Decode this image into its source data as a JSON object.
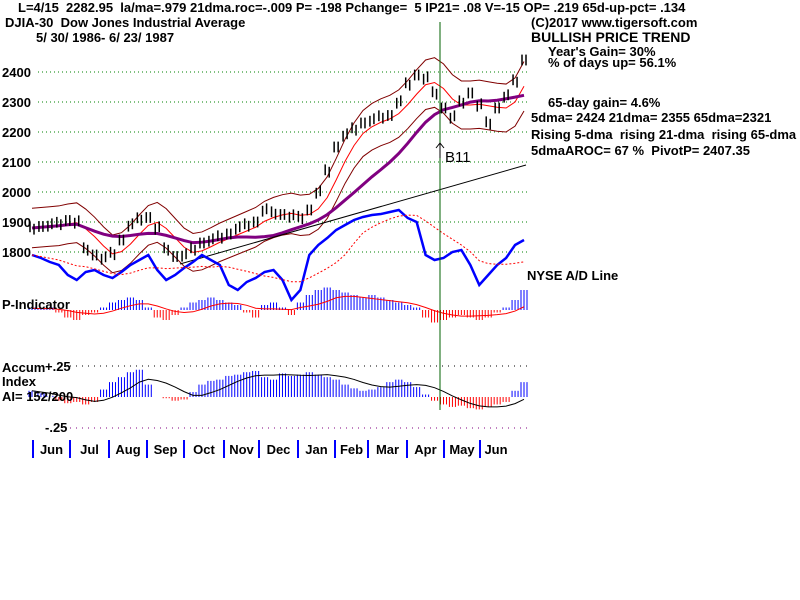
{
  "header": {
    "line1": "L=4/15  2282.95  la/ma=.979 21dma.roc=-.009 P= -198 Pchange=  5 IP21= .08 V=-15 OP= .219 65d-up-pct= .134",
    "title": "DJIA-30  Dow Jones Industrial Average",
    "range": "5/ 30/ 1986- 6/ 23/ 1987"
  },
  "info": {
    "copyright": "(C)2017 www.tigersoft.com",
    "trend": "BULLISH PRICE TREND",
    "year_gain": "Year's Gain= 30%",
    "days_up": "% of days up= 56.1%",
    "gain65": "65-day gain= 4.6%",
    "mas": "5dma= 2424 21dma= 2355 65dma=2321",
    "rising": "Rising 5-dma  rising 21-dma  rising 65-dma",
    "aroc": "5dmaAROC= 67 %  PivotP= 2407.35"
  },
  "labels": {
    "signal": "B11",
    "ad_line": "NYSE A/D Line",
    "p_indicator": "P-Indicator",
    "accum1": "Accum",
    "accum2": "Index",
    "accum3": "AI= 152/200",
    "plus25": "+.25",
    "minus25": "-.25"
  },
  "colors": {
    "up": "#0000ff",
    "down": "#ff0000",
    "ma65": "#800080",
    "band": "#800000",
    "grid": "#008000",
    "ad": "#0000ff"
  },
  "chart_data": {
    "type": "line",
    "title": "DJIA-30 Dow Jones Industrial Average",
    "price_ticks": [
      2400,
      2300,
      2200,
      2100,
      2000,
      1900,
      1800
    ],
    "ylim": [
      1750,
      2450
    ],
    "months": [
      "Jun",
      "Jul",
      "Aug",
      "Sep",
      "Oct",
      "Nov",
      "Dec",
      "Jan",
      "Feb",
      "Mar",
      "Apr",
      "May",
      "Jun"
    ],
    "weekly_close": [
      1880,
      1885,
      1890,
      1895,
      1905,
      1900,
      1810,
      1790,
      1780,
      1795,
      1840,
      1890,
      1910,
      1915,
      1880,
      1810,
      1785,
      1790,
      1810,
      1830,
      1840,
      1850,
      1860,
      1880,
      1890,
      1900,
      1940,
      1930,
      1925,
      1920,
      1915,
      1940,
      2000,
      2070,
      2150,
      2190,
      2210,
      2230,
      2240,
      2250,
      2255,
      2300,
      2360,
      2390,
      2380,
      2330,
      2280,
      2250,
      2300,
      2330,
      2290,
      2230,
      2280,
      2320,
      2370,
      2440
    ],
    "ad_line_relative": [
      45,
      42,
      38,
      35,
      25,
      20,
      28,
      30,
      25,
      22,
      28,
      35,
      40,
      45,
      30,
      20,
      25,
      32,
      38,
      45,
      40,
      35,
      15,
      10,
      18,
      22,
      28,
      30,
      20,
      0,
      10,
      45,
      55,
      62,
      70,
      75,
      80,
      83,
      85,
      86,
      88,
      90,
      82,
      78,
      45,
      40,
      42,
      48,
      50,
      35,
      15,
      25,
      35,
      42,
      55,
      60
    ],
    "p_indicator": [
      0.1,
      0.05,
      0.1,
      -0.1,
      -0.3,
      -0.4,
      -0.2,
      -0.1,
      0.1,
      0.3,
      0.4,
      0.5,
      0.4,
      0.1,
      -0.3,
      -0.4,
      -0.2,
      0.1,
      0.3,
      0.4,
      0.5,
      0.4,
      0.3,
      0.2,
      -0.1,
      -0.3,
      0.2,
      0.3,
      0.1,
      -0.2,
      0.3,
      0.6,
      0.8,
      0.9,
      0.8,
      0.7,
      0.6,
      0.5,
      0.6,
      0.5,
      0.4,
      0.3,
      0.2,
      0.1,
      -0.3,
      -0.5,
      -0.4,
      -0.3,
      -0.2,
      -0.3,
      -0.4,
      -0.3,
      -0.1,
      0.1,
      0.4,
      0.8
    ],
    "accum_index": [
      0.05,
      0.03,
      0.01,
      -0.03,
      -0.05,
      -0.04,
      -0.06,
      -0.04,
      0.06,
      0.12,
      0.16,
      0.2,
      0.22,
      0.1,
      0.0,
      -0.01,
      -0.03,
      -0.02,
      0.04,
      0.1,
      0.13,
      0.14,
      0.17,
      0.18,
      0.2,
      0.21,
      0.16,
      0.14,
      0.19,
      0.17,
      0.18,
      0.2,
      0.18,
      0.16,
      0.14,
      0.1,
      0.07,
      0.05,
      0.06,
      0.08,
      0.12,
      0.14,
      0.12,
      0.08,
      0.02,
      -0.03,
      -0.06,
      -0.08,
      -0.07,
      -0.09,
      -0.1,
      -0.08,
      -0.06,
      -0.04,
      0.05,
      0.12
    ],
    "accum_ylim": [
      -0.25,
      0.25
    ],
    "signals": [
      {
        "label": "B11",
        "month": "Apr"
      }
    ]
  }
}
